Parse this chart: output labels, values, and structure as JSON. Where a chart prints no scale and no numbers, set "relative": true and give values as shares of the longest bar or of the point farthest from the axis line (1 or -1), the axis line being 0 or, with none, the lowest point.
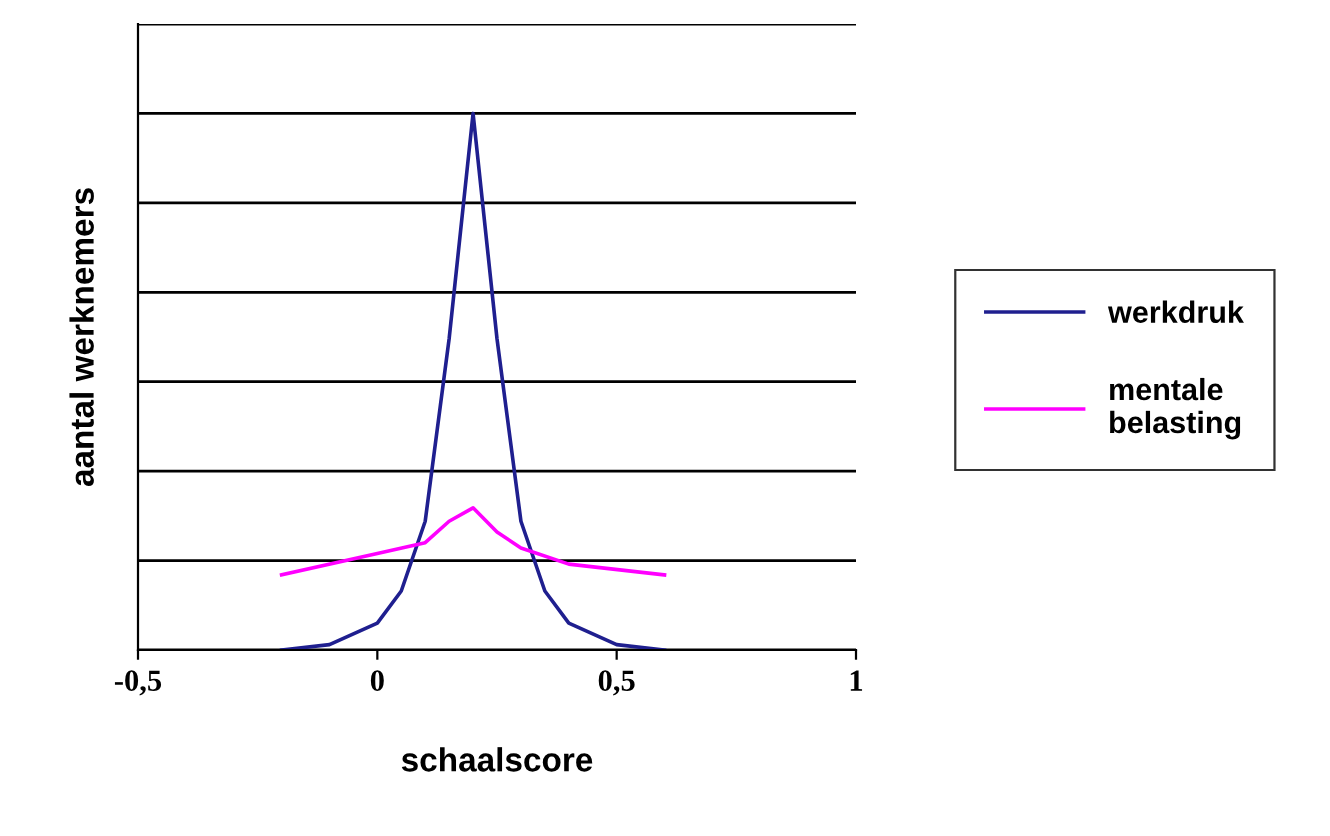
{
  "chart_data": {
    "type": "line",
    "relative": true,
    "xlabel": "schaalscore",
    "ylabel": "aantal werknemers",
    "xlim": [
      -0.5,
      1
    ],
    "xticks": [
      {
        "value": -0.5,
        "label": "-0,5"
      },
      0,
      {
        "value": 0.5,
        "label": "0,5"
      },
      1
    ],
    "grid": "y",
    "legend": "right",
    "marker": "none",
    "line_style": "solid",
    "series": [
      {
        "name": "werkdruk",
        "color": "#1f1f8f",
        "x": [
          -0.2,
          -0.1,
          0,
          0.05,
          0.1,
          0.15,
          0.2,
          0.25,
          0.3,
          0.35,
          0.4,
          0.5,
          0.6
        ],
        "values": [
          0,
          0.01,
          0.05,
          0.11,
          0.24,
          0.58,
          1,
          0.58,
          0.24,
          0.11,
          0.05,
          0.01,
          0
        ]
      },
      {
        "name": "mentale belasting",
        "color": "#ff00ff",
        "x": [
          -0.2,
          0,
          0.1,
          0.15,
          0.2,
          0.25,
          0.3,
          0.4,
          0.6
        ],
        "values": [
          0.14,
          0.18,
          0.2,
          0.24,
          0.265,
          0.22,
          0.19,
          0.16,
          0.14
        ]
      }
    ]
  }
}
